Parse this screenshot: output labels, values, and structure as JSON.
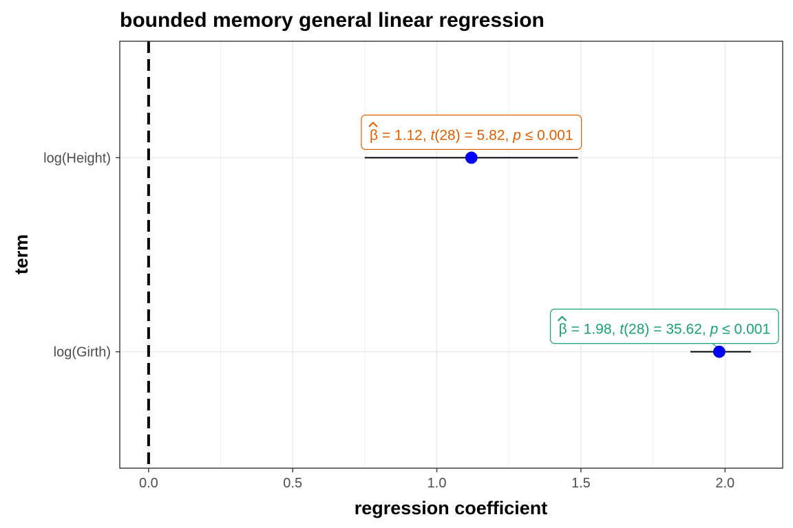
{
  "chart_data": {
    "type": "scatter",
    "title": "bounded memory general linear regression",
    "xlabel": "regression coefficient",
    "ylabel": "term",
    "xlim": [
      -0.1,
      2.2
    ],
    "x_ticks": [
      "0.0",
      "0.5",
      "1.0",
      "1.5",
      "2.0"
    ],
    "x_tick_values": [
      0.0,
      0.5,
      1.0,
      1.5,
      2.0
    ],
    "reference_line": {
      "x": 0,
      "style": "dashed"
    },
    "grid": true,
    "terms": [
      {
        "label": "log(Height)",
        "estimate": 1.12,
        "conf_low": 0.75,
        "conf_high": 1.49,
        "annotation": {
          "beta": "β",
          "estimate_text": " = 1.12, ",
          "t_symbol": "t",
          "t_text": "(28) = 5.82, ",
          "p_symbol": "p",
          "p_text": " ≤ 0.001",
          "color": "#D95F02"
        }
      },
      {
        "label": "log(Girth)",
        "estimate": 1.98,
        "conf_low": 1.88,
        "conf_high": 2.09,
        "annotation": {
          "beta": "β",
          "estimate_text": " = 1.98, ",
          "t_symbol": "t",
          "t_text": "(28) = 35.62, ",
          "p_symbol": "p",
          "p_text": " ≤ 0.001",
          "color": "#1B9E77"
        }
      }
    ],
    "point_color": "#0000FF"
  }
}
